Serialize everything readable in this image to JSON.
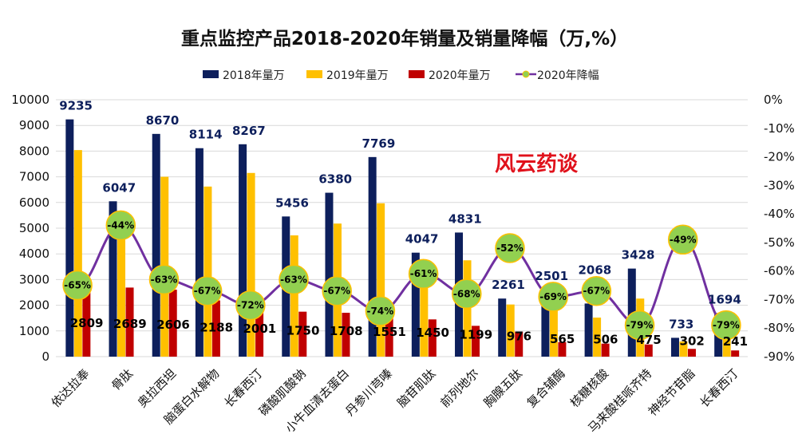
{
  "chart_data": {
    "type": "bar",
    "title": "重点监控产品2018-2020年销量及销量降幅（万,%）",
    "watermark": "风云药谈",
    "categories": [
      "依达拉奉",
      "骨肽",
      "奥拉西坦",
      "脑蛋白水解物",
      "长春西汀",
      "磷酸肌酸钠",
      "小牛血清去蛋白",
      "丹参川芎嗪",
      "脑苷肌肽",
      "前列地尔",
      "胸腺五肽",
      "复合辅酶",
      "核糖核酸",
      "马来酸桂哌齐特",
      "神经节苷脂",
      "长春西汀"
    ],
    "series": [
      {
        "name": "2018年量万",
        "type": "bar",
        "axis": "left",
        "color": "#0d1f5c",
        "values": [
          9235,
          6047,
          8670,
          8114,
          8267,
          5456,
          6380,
          7769,
          4047,
          4831,
          2261,
          2501,
          2068,
          3428,
          733,
          1694
        ],
        "labels_shown": true
      },
      {
        "name": "2019年量万",
        "type": "bar",
        "axis": "left",
        "color": "#ffc000",
        "values": [
          8040,
          4800,
          7000,
          6620,
          7150,
          4720,
          5180,
          5970,
          3720,
          3750,
          2030,
          1820,
          1520,
          2260,
          590,
          1150
        ],
        "labels_shown": false
      },
      {
        "name": "2020年量万",
        "type": "bar",
        "axis": "left",
        "color": "#c00000",
        "values": [
          2809,
          2689,
          2606,
          2188,
          2001,
          1750,
          1708,
          1551,
          1450,
          1199,
          976,
          565,
          506,
          475,
          302,
          241
        ],
        "labels_shown": true
      },
      {
        "name": "2020年降幅",
        "type": "line",
        "axis": "right",
        "color": "#7030a0",
        "marker_color": "#92d050",
        "values": [
          -65,
          -44,
          -63,
          -67,
          -72,
          -63,
          -67,
          -74,
          -61,
          -68,
          -52,
          -69,
          -67,
          -79,
          -49,
          -79
        ],
        "value_labels": [
          "-65%",
          "-44%",
          "-63%",
          "-67%",
          "-72%",
          "-63%",
          "-67%",
          "-74%",
          "-61%",
          "-68%",
          "-52%",
          "-69%",
          "-67%",
          "-79%",
          "-49%",
          "-79%"
        ]
      }
    ],
    "y_left": {
      "range": [
        0,
        10000
      ],
      "ticks": [
        "0",
        "1000",
        "2000",
        "3000",
        "4000",
        "5000",
        "6000",
        "7000",
        "8000",
        "9000",
        "10000"
      ]
    },
    "y_right": {
      "range": [
        -90,
        0
      ],
      "ticks": [
        "0%",
        "-10%",
        "-20%",
        "-30%",
        "-40%",
        "-50%",
        "-60%",
        "-70%",
        "-80%",
        "-90%"
      ]
    },
    "grid": true,
    "legend": "top"
  }
}
